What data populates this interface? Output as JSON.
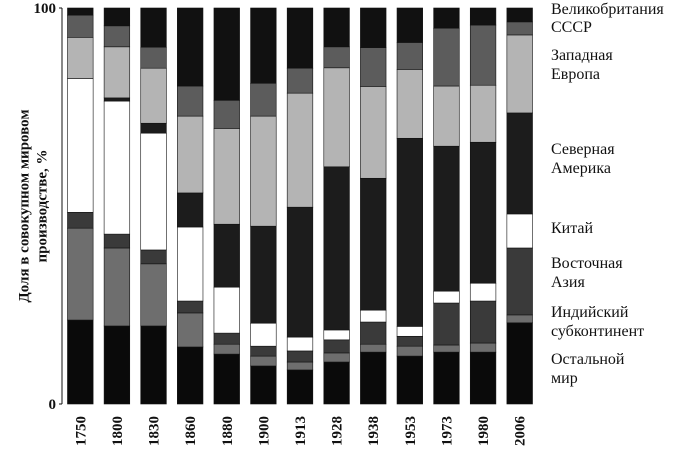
{
  "chart_data": {
    "type": "stacked_bar",
    "y_label": "Доля в совокупном мировом производстве, %",
    "categories": [
      "1750",
      "1800",
      "1830",
      "1860",
      "1880",
      "1900",
      "1913",
      "1928",
      "1938",
      "1953",
      "1973",
      "1980",
      "2006"
    ],
    "ylim": [
      0,
      100
    ],
    "yticks": [
      0,
      100
    ],
    "series": [
      {
        "name": "Остальной мир",
        "color": "#0a0a0a",
        "values": [
          21.2,
          19.7,
          19.7,
          14.4,
          12.6,
          9.6,
          8.6,
          10.6,
          13.1,
          12.1,
          13.1,
          13.1,
          20.5
        ]
      },
      {
        "name": "Индийский субконтинент",
        "color": "#6e6e6e",
        "values": [
          23.2,
          19.7,
          15.7,
          8.6,
          2.5,
          2.5,
          2.0,
          2.3,
          2.0,
          2.5,
          1.8,
          2.3,
          2.0
        ]
      },
      {
        "name": "Восточная Азия",
        "color": "#3a3a3a",
        "values": [
          4.0,
          3.5,
          3.5,
          3.0,
          2.8,
          2.5,
          2.8,
          3.3,
          5.6,
          2.5,
          10.6,
          10.6,
          16.9
        ]
      },
      {
        "name": "Китай",
        "color": "#ffffff",
        "values": [
          33.8,
          33.6,
          29.5,
          18.7,
          11.6,
          5.8,
          3.5,
          2.5,
          3.0,
          2.5,
          3.0,
          4.5,
          8.6
        ]
      },
      {
        "name": "Северная Америка",
        "color": "#1c1c1c",
        "values": [
          0,
          0.8,
          2.5,
          8.6,
          15.9,
          24.5,
          32.8,
          41.2,
          33.3,
          47.5,
          36.6,
          35.6,
          25.5
        ]
      },
      {
        "name": "Западная Европа",
        "color": "#b4b4b4",
        "values": [
          10.4,
          12.9,
          13.9,
          19.4,
          24.2,
          27.8,
          28.8,
          25.0,
          23.2,
          17.4,
          15.2,
          14.4,
          19.7
        ]
      },
      {
        "name": "СССР",
        "color": "#5c5c5c",
        "values": [
          5.6,
          5.3,
          5.3,
          7.6,
          7.1,
          8.3,
          6.3,
          5.3,
          9.8,
          6.8,
          14.6,
          15.2,
          3.3
        ]
      },
      {
        "name": "Великобритания",
        "color": "#111111",
        "values": [
          1.8,
          4.5,
          9.9,
          19.7,
          23.3,
          19.0,
          15.2,
          9.8,
          10.0,
          8.7,
          5.1,
          4.3,
          3.5
        ]
      }
    ]
  }
}
